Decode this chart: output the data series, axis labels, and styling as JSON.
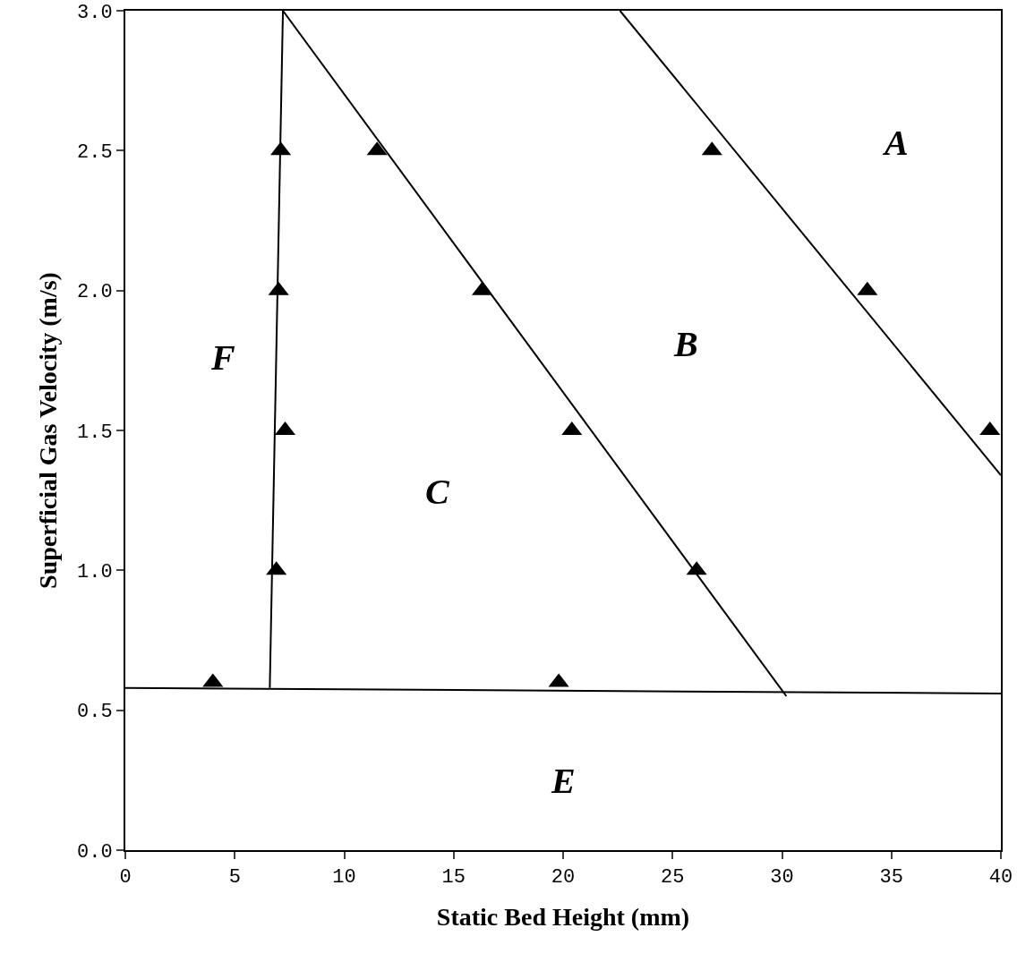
{
  "chart_data": {
    "type": "scatter",
    "xlabel": "Static Bed Height (mm)",
    "ylabel": "Superficial Gas Velocity (m/s)",
    "xlim": [
      0,
      40
    ],
    "ylim": [
      0,
      3
    ],
    "xticks": [
      0,
      5,
      10,
      15,
      20,
      25,
      30,
      35,
      40
    ],
    "yticks": [
      {
        "value": 0,
        "label": "0.0"
      },
      {
        "value": 0.5,
        "label": "0.5"
      },
      {
        "value": 1,
        "label": "1.0"
      },
      {
        "value": 1.5,
        "label": "1.5"
      },
      {
        "value": 2,
        "label": "2.0"
      },
      {
        "value": 2.5,
        "label": "2.5"
      },
      {
        "value": 3,
        "label": "3.0"
      }
    ],
    "grid": false,
    "series": [
      {
        "type": "line",
        "color": "#000000",
        "line_style": "solid",
        "marker": "none",
        "x": [
          6.6,
          7.2
        ],
        "values": [
          0.58,
          3.0
        ]
      },
      {
        "type": "line",
        "color": "#000000",
        "line_style": "solid",
        "marker": "none",
        "x": [
          0,
          40
        ],
        "values": [
          0.58,
          0.56
        ]
      },
      {
        "type": "line",
        "color": "#000000",
        "line_style": "solid",
        "marker": "none",
        "x": [
          7.2,
          30.2
        ],
        "values": [
          3.0,
          0.55
        ]
      },
      {
        "type": "line",
        "color": "#000000",
        "line_style": "solid",
        "marker": "none",
        "x": [
          22.6,
          40
        ],
        "values": [
          3.0,
          1.34
        ]
      },
      {
        "color": "#000000",
        "marker": "triangle",
        "x": [
          7.1,
          7.0,
          7.3,
          6.9,
          4.0,
          11.5,
          16.3,
          20.4,
          26.1,
          19.8,
          26.8,
          33.9,
          39.5
        ],
        "values": [
          2.5,
          2.0,
          1.5,
          1.0,
          0.6,
          2.5,
          2.0,
          1.5,
          1.0,
          0.6,
          2.5,
          2.0,
          1.5
        ]
      }
    ],
    "annotations": [
      "A",
      "B",
      "C",
      "E",
      "F"
    ]
  }
}
